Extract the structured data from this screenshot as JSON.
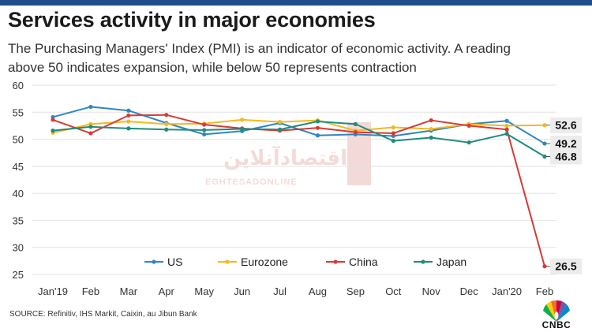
{
  "header": {
    "title": "Services activity in major economies",
    "subtitle_line1": "The Purchasing Managers' Index (PMI) is an indicator of economic activity. A reading",
    "subtitle_line2": "above 50 indicates expansion, while below 50 represents contraction"
  },
  "footer": {
    "source": "SOURCE: Refinitiv, IHS Markit, Caixin, au Jibun Bank",
    "logo_text": "CNBC"
  },
  "watermark": {
    "text": "اقتصادآنلاین",
    "sub": "EGHTESADONLINE"
  },
  "colors": {
    "US": "#2e86c1",
    "Eurozone": "#f5b820",
    "China": "#d63a34",
    "Japan": "#1e8c7e",
    "topbar": "#1f4e8c"
  },
  "chart_data": {
    "type": "line",
    "title": "Services activity in major economies",
    "xlabel": "",
    "ylabel": "",
    "ylim": [
      25,
      60
    ],
    "yticks": [
      25,
      30,
      35,
      40,
      45,
      50,
      55,
      60
    ],
    "grid": true,
    "legend_position": "bottom",
    "categories": [
      "Jan'19",
      "Feb",
      "Mar",
      "Apr",
      "May",
      "Jun",
      "Jul",
      "Aug",
      "Sep",
      "Oct",
      "Nov",
      "Dec",
      "Jan'20",
      "Feb"
    ],
    "series": [
      {
        "name": "US",
        "values": [
          54.1,
          56.0,
          55.3,
          53.0,
          50.9,
          51.5,
          53.0,
          50.7,
          50.9,
          50.6,
          51.6,
          52.8,
          53.4,
          49.2
        ],
        "end_label": "49.2"
      },
      {
        "name": "Eurozone",
        "values": [
          51.2,
          52.8,
          53.3,
          52.8,
          52.9,
          53.6,
          53.2,
          53.5,
          51.6,
          52.2,
          51.9,
          52.8,
          52.5,
          52.6
        ],
        "end_label": "52.6"
      },
      {
        "name": "China",
        "values": [
          53.6,
          51.1,
          54.4,
          54.5,
          52.7,
          52.0,
          51.6,
          52.1,
          51.3,
          51.1,
          53.5,
          52.5,
          51.8,
          26.5
        ],
        "end_label": "26.5"
      },
      {
        "name": "Japan",
        "values": [
          51.6,
          52.3,
          52.0,
          51.8,
          51.7,
          51.9,
          51.8,
          53.3,
          52.8,
          49.7,
          50.3,
          49.4,
          51.0,
          46.8
        ],
        "end_label": "46.8"
      }
    ]
  }
}
